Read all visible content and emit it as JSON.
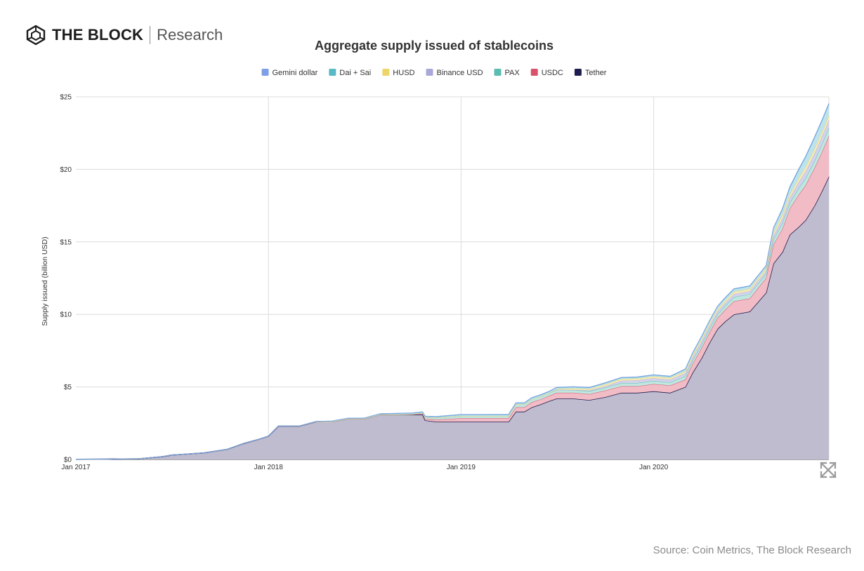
{
  "brand": {
    "logo_icon": "cube-hexagon-icon",
    "name": "THE BLOCK",
    "subtitle": "Research"
  },
  "source": "Source: Coin Metrics, The Block Research",
  "expand_icon": "expand-arrows-icon",
  "chart_data": {
    "type": "area",
    "stacked": true,
    "title": "Aggregate supply issued of stablecoins",
    "xlabel": "",
    "ylabel": "Supply issued (billion USD)",
    "xlim": [
      "2017-01-01",
      "2020-11-28"
    ],
    "ylim": [
      0,
      25
    ],
    "y_ticks": [
      "$0",
      "$5",
      "$10",
      "$15",
      "$20",
      "$25"
    ],
    "x_ticks": [
      "Jan 2017",
      "Jan 2018",
      "Jan 2019",
      "Jan 2020"
    ],
    "grid": true,
    "legend_position": "top-center",
    "x": [
      "2017-01-01",
      "2017-03-01",
      "2017-05-01",
      "2017-06-15",
      "2017-07-01",
      "2017-09-01",
      "2017-10-15",
      "2017-11-15",
      "2017-12-15",
      "2018-01-01",
      "2018-01-20",
      "2018-02-01",
      "2018-03-01",
      "2018-04-01",
      "2018-05-01",
      "2018-06-01",
      "2018-07-01",
      "2018-08-01",
      "2018-09-01",
      "2018-10-01",
      "2018-10-20",
      "2018-10-25",
      "2018-11-15",
      "2018-12-15",
      "2019-01-01",
      "2019-02-01",
      "2019-03-01",
      "2019-04-01",
      "2019-04-15",
      "2019-05-01",
      "2019-05-15",
      "2019-06-01",
      "2019-06-15",
      "2019-07-01",
      "2019-08-01",
      "2019-09-01",
      "2019-10-01",
      "2019-11-01",
      "2019-12-01",
      "2020-01-01",
      "2020-02-01",
      "2020-03-01",
      "2020-03-15",
      "2020-04-01",
      "2020-04-15",
      "2020-05-01",
      "2020-05-15",
      "2020-06-01",
      "2020-07-01",
      "2020-08-01",
      "2020-08-15",
      "2020-09-01",
      "2020-09-15",
      "2020-10-01",
      "2020-10-15",
      "2020-11-01",
      "2020-11-15",
      "2020-11-28"
    ],
    "series": [
      {
        "name": "Tether",
        "color": "#1f1d4f",
        "fill": "#c0bccf",
        "values": [
          0.01,
          0.02,
          0.05,
          0.2,
          0.3,
          0.45,
          0.7,
          1.1,
          1.4,
          1.6,
          2.3,
          2.3,
          2.3,
          2.6,
          2.6,
          2.8,
          2.8,
          3.1,
          3.1,
          3.1,
          3.1,
          2.7,
          2.6,
          2.6,
          2.6,
          2.6,
          2.6,
          2.6,
          3.3,
          3.3,
          3.6,
          3.8,
          4.0,
          4.2,
          4.2,
          4.1,
          4.3,
          4.6,
          4.6,
          4.7,
          4.6,
          5.0,
          6.0,
          7.0,
          8.0,
          9.0,
          9.5,
          10.0,
          10.2,
          11.5,
          13.5,
          14.3,
          15.5,
          16.0,
          16.5,
          17.5,
          18.5,
          19.5
        ]
      },
      {
        "name": "USDC",
        "color": "#d9526b",
        "fill": "#f2bcc6",
        "values": [
          0,
          0,
          0,
          0,
          0,
          0,
          0,
          0,
          0,
          0,
          0,
          0,
          0,
          0,
          0,
          0,
          0,
          0,
          0,
          0.01,
          0.05,
          0.1,
          0.15,
          0.2,
          0.25,
          0.25,
          0.25,
          0.25,
          0.3,
          0.3,
          0.35,
          0.35,
          0.35,
          0.4,
          0.4,
          0.4,
          0.45,
          0.45,
          0.45,
          0.5,
          0.5,
          0.5,
          0.6,
          0.7,
          0.7,
          0.75,
          0.8,
          0.9,
          0.9,
          1.0,
          1.3,
          1.6,
          1.8,
          2.2,
          2.4,
          2.6,
          2.7,
          2.8
        ]
      },
      {
        "name": "PAX",
        "color": "#5bbcb2",
        "fill": "#bfe6df",
        "values": [
          0,
          0,
          0,
          0,
          0,
          0,
          0,
          0,
          0,
          0,
          0,
          0,
          0,
          0,
          0,
          0,
          0,
          0,
          0,
          0.01,
          0.05,
          0.1,
          0.12,
          0.15,
          0.15,
          0.15,
          0.15,
          0.15,
          0.2,
          0.2,
          0.2,
          0.2,
          0.2,
          0.2,
          0.2,
          0.2,
          0.2,
          0.22,
          0.22,
          0.22,
          0.22,
          0.25,
          0.25,
          0.25,
          0.25,
          0.25,
          0.27,
          0.3,
          0.3,
          0.3,
          0.35,
          0.4,
          0.4,
          0.45,
          0.5,
          0.5,
          0.55,
          0.55
        ]
      },
      {
        "name": "Binance USD",
        "color": "#aaa8d8",
        "fill": "#d6d3ee",
        "values": [
          0,
          0,
          0,
          0,
          0,
          0,
          0,
          0,
          0,
          0,
          0,
          0,
          0,
          0,
          0,
          0,
          0,
          0,
          0,
          0,
          0,
          0,
          0,
          0,
          0,
          0,
          0,
          0,
          0,
          0,
          0,
          0,
          0,
          0,
          0,
          0.05,
          0.1,
          0.15,
          0.18,
          0.18,
          0.18,
          0.2,
          0.2,
          0.2,
          0.2,
          0.2,
          0.2,
          0.2,
          0.2,
          0.2,
          0.25,
          0.3,
          0.3,
          0.4,
          0.45,
          0.5,
          0.5,
          0.55
        ]
      },
      {
        "name": "HUSD",
        "color": "#eed56a",
        "fill": "#f8edb8",
        "values": [
          0,
          0,
          0,
          0,
          0,
          0,
          0,
          0,
          0,
          0,
          0,
          0,
          0,
          0,
          0,
          0,
          0,
          0,
          0,
          0,
          0,
          0,
          0,
          0,
          0,
          0,
          0,
          0,
          0,
          0,
          0,
          0,
          0,
          0.05,
          0.1,
          0.1,
          0.12,
          0.12,
          0.12,
          0.12,
          0.12,
          0.12,
          0.15,
          0.15,
          0.15,
          0.15,
          0.15,
          0.15,
          0.15,
          0.15,
          0.2,
          0.25,
          0.25,
          0.25,
          0.3,
          0.3,
          0.3,
          0.3
        ]
      },
      {
        "name": "Dai + Sai",
        "color": "#5ab9c6",
        "fill": "#bfe3ea",
        "values": [
          0,
          0,
          0,
          0,
          0,
          0,
          0,
          0,
          0,
          0,
          0,
          0,
          0.01,
          0.02,
          0.05,
          0.05,
          0.05,
          0.06,
          0.07,
          0.07,
          0.07,
          0.07,
          0.07,
          0.08,
          0.08,
          0.08,
          0.09,
          0.09,
          0.09,
          0.09,
          0.1,
          0.1,
          0.1,
          0.1,
          0.1,
          0.1,
          0.1,
          0.1,
          0.1,
          0.1,
          0.1,
          0.15,
          0.15,
          0.2,
          0.2,
          0.2,
          0.2,
          0.2,
          0.2,
          0.2,
          0.35,
          0.4,
          0.5,
          0.6,
          0.7,
          0.8,
          0.8,
          0.8
        ]
      },
      {
        "name": "Gemini dollar",
        "color": "#7d9fe6",
        "fill": "#c5d4f4",
        "values": [
          0,
          0,
          0,
          0,
          0,
          0,
          0,
          0,
          0,
          0,
          0,
          0,
          0,
          0,
          0,
          0,
          0,
          0,
          0.01,
          0.02,
          0.02,
          0.02,
          0.02,
          0.02,
          0.02,
          0.02,
          0.02,
          0.02,
          0.02,
          0.02,
          0.02,
          0.02,
          0.02,
          0.02,
          0.02,
          0.02,
          0.02,
          0.02,
          0.02,
          0.02,
          0.02,
          0.02,
          0.02,
          0.02,
          0.02,
          0.02,
          0.02,
          0.02,
          0.02,
          0.02,
          0.02,
          0.05,
          0.05,
          0.05,
          0.05,
          0.05,
          0.05,
          0.05
        ]
      }
    ]
  }
}
